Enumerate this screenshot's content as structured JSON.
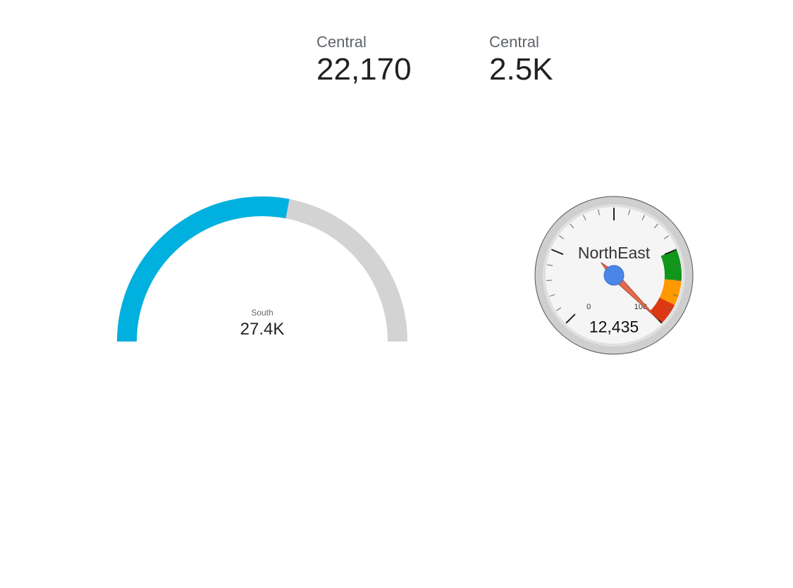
{
  "scorecards": [
    {
      "label": "Central",
      "value": "22,170"
    },
    {
      "label": "Central",
      "value": "2.5K"
    }
  ],
  "semi_gauge": {
    "label": "South",
    "value_text": "27.4K",
    "fill_fraction": 0.56,
    "fill_color": "#00b0de",
    "track_color": "#d3d3d3"
  },
  "dial_gauge": {
    "title": "NorthEast",
    "value_text": "12,435",
    "min_label": "0",
    "max_label": "100",
    "needle_fraction": 1.0,
    "needle_color": "#e06c50",
    "hub_color": "#4a86e8",
    "bands": [
      {
        "from": 0.75,
        "to": 0.85,
        "color": "#109618"
      },
      {
        "from": 0.85,
        "to": 0.93,
        "color": "#ff9900"
      },
      {
        "from": 0.93,
        "to": 1.0,
        "color": "#dc3912"
      }
    ]
  }
}
